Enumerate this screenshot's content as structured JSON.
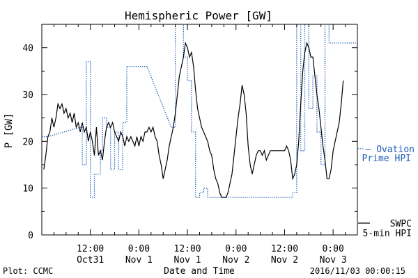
{
  "chart_data": {
    "type": "line",
    "title": "Hemispheric Power [GW]",
    "xlabel": "Date and Time",
    "ylabel": "P [GW]",
    "ylim": [
      0,
      45
    ],
    "xlim": [
      0,
      78
    ],
    "x_unit": "hours from 2016-10-31 00:00",
    "y_ticks": [
      0,
      10,
      20,
      30,
      40
    ],
    "x_ticks": [
      {
        "x": 12,
        "time": "12:00",
        "date": "Oct31"
      },
      {
        "x": 24,
        "time": "0:00",
        "date": "Nov 1"
      },
      {
        "x": 36,
        "time": "12:00",
        "date": "Nov 1"
      },
      {
        "x": 48,
        "time": "0:00",
        "date": "Nov 2"
      },
      {
        "x": 60,
        "time": "12:00",
        "date": "Nov 2"
      },
      {
        "x": 72,
        "time": "0:00",
        "date": "Nov 3"
      }
    ],
    "grid": false,
    "footer_left": "Plot: CCMC",
    "footer_right": "2016/11/03 00:00:15",
    "series": [
      {
        "name": "Ovation Prime HPI",
        "legend": [
          "— Ovation",
          "Prime HPI"
        ],
        "color": "#1f5fb8",
        "style": "dotted",
        "points": [
          [
            0,
            21
          ],
          [
            1.5,
            21
          ],
          [
            9.5,
            23
          ],
          [
            10,
            23
          ],
          [
            10,
            15
          ],
          [
            11,
            15
          ],
          [
            11,
            37
          ],
          [
            12,
            37
          ],
          [
            12,
            8
          ],
          [
            13,
            8
          ],
          [
            13,
            13
          ],
          [
            14.5,
            13
          ],
          [
            14.5,
            18
          ],
          [
            15,
            18
          ],
          [
            15,
            25
          ],
          [
            16,
            25
          ],
          [
            16,
            23
          ],
          [
            17,
            23
          ],
          [
            17,
            14
          ],
          [
            18,
            14
          ],
          [
            18,
            22
          ],
          [
            19,
            22
          ],
          [
            19,
            14
          ],
          [
            20,
            14
          ],
          [
            20,
            24
          ],
          [
            21,
            24
          ],
          [
            21,
            36
          ],
          [
            26,
            36
          ],
          [
            32,
            23
          ],
          [
            33,
            23
          ],
          [
            33,
            47
          ],
          [
            35,
            47
          ],
          [
            35,
            38
          ],
          [
            36,
            38
          ],
          [
            36,
            33
          ],
          [
            37,
            33
          ],
          [
            37,
            22
          ],
          [
            38,
            22
          ],
          [
            38,
            8
          ],
          [
            39,
            8
          ],
          [
            39,
            9
          ],
          [
            40,
            9
          ],
          [
            40,
            10
          ],
          [
            41,
            10
          ],
          [
            41,
            8
          ],
          [
            62,
            8
          ],
          [
            62,
            9
          ],
          [
            63,
            9
          ],
          [
            63,
            47
          ],
          [
            64,
            47
          ],
          [
            64,
            18
          ],
          [
            65,
            18
          ],
          [
            65,
            47
          ],
          [
            66,
            47
          ],
          [
            66,
            27
          ],
          [
            67,
            27
          ],
          [
            67,
            34
          ],
          [
            68,
            34
          ],
          [
            68,
            22
          ],
          [
            69,
            22
          ],
          [
            69,
            15
          ],
          [
            70,
            15
          ],
          [
            70,
            47
          ],
          [
            71,
            47
          ],
          [
            71,
            41
          ],
          [
            78,
            41
          ]
        ]
      },
      {
        "name": "SWPC 5-min HPI",
        "legend": [
          "SWPC",
          "5-min HPI"
        ],
        "color": "#000000",
        "style": "solid",
        "points": [
          [
            0.5,
            14
          ],
          [
            1,
            17
          ],
          [
            1.5,
            21
          ],
          [
            2,
            22
          ],
          [
            2.5,
            25
          ],
          [
            3,
            23
          ],
          [
            3.5,
            25
          ],
          [
            4,
            28
          ],
          [
            4.5,
            27
          ],
          [
            5,
            28
          ],
          [
            5.5,
            26
          ],
          [
            6,
            27
          ],
          [
            6.5,
            25
          ],
          [
            7,
            26
          ],
          [
            7.5,
            24
          ],
          [
            8,
            26
          ],
          [
            8.5,
            23
          ],
          [
            9,
            24
          ],
          [
            9.5,
            22
          ],
          [
            10,
            24
          ],
          [
            10.5,
            22
          ],
          [
            11,
            23
          ],
          [
            11.5,
            20
          ],
          [
            12,
            22
          ],
          [
            12.5,
            20
          ],
          [
            13,
            17
          ],
          [
            13.5,
            23
          ],
          [
            14,
            17
          ],
          [
            14.5,
            18
          ],
          [
            15,
            16
          ],
          [
            15.5,
            20
          ],
          [
            16,
            23
          ],
          [
            16.5,
            24
          ],
          [
            17,
            23
          ],
          [
            17.5,
            24
          ],
          [
            18,
            22
          ],
          [
            18.5,
            21
          ],
          [
            19,
            20
          ],
          [
            19.5,
            22
          ],
          [
            20,
            21
          ],
          [
            20.5,
            19
          ],
          [
            21,
            21
          ],
          [
            21.5,
            20
          ],
          [
            22,
            21
          ],
          [
            22.5,
            20
          ],
          [
            23,
            19
          ],
          [
            23.5,
            21
          ],
          [
            24,
            19
          ],
          [
            24.5,
            21
          ],
          [
            25,
            20
          ],
          [
            25.5,
            22
          ],
          [
            26,
            22
          ],
          [
            26.5,
            23
          ],
          [
            27,
            22
          ],
          [
            27.5,
            23
          ],
          [
            28,
            21
          ],
          [
            28.5,
            20
          ],
          [
            29,
            17
          ],
          [
            29.5,
            15
          ],
          [
            30,
            12
          ],
          [
            30.5,
            14
          ],
          [
            31,
            16
          ],
          [
            31.5,
            19
          ],
          [
            32,
            21
          ],
          [
            32.5,
            23
          ],
          [
            33,
            26
          ],
          [
            33.5,
            30
          ],
          [
            34,
            34
          ],
          [
            34.5,
            36
          ],
          [
            35,
            38
          ],
          [
            35.5,
            41
          ],
          [
            36,
            40
          ],
          [
            36.5,
            38
          ],
          [
            37,
            39
          ],
          [
            37.5,
            36
          ],
          [
            38,
            31
          ],
          [
            38.5,
            27
          ],
          [
            39,
            25
          ],
          [
            39.5,
            23
          ],
          [
            40,
            22
          ],
          [
            40.5,
            21
          ],
          [
            41,
            20
          ],
          [
            41.5,
            18
          ],
          [
            42,
            17
          ],
          [
            42.5,
            14
          ],
          [
            43,
            12
          ],
          [
            43.5,
            11
          ],
          [
            44,
            9
          ],
          [
            44.5,
            8
          ],
          [
            45,
            8
          ],
          [
            45.5,
            8
          ],
          [
            46,
            9
          ],
          [
            46.5,
            11
          ],
          [
            47,
            13
          ],
          [
            47.5,
            17
          ],
          [
            48,
            21
          ],
          [
            48.5,
            25
          ],
          [
            49,
            28
          ],
          [
            49.5,
            32
          ],
          [
            50,
            30
          ],
          [
            50.5,
            26
          ],
          [
            51,
            19
          ],
          [
            51.5,
            15
          ],
          [
            52,
            13
          ],
          [
            52.5,
            15
          ],
          [
            53,
            17
          ],
          [
            53.5,
            18
          ],
          [
            54,
            18
          ],
          [
            54.5,
            17
          ],
          [
            55,
            18
          ],
          [
            55.5,
            16
          ],
          [
            56,
            17
          ],
          [
            56.5,
            18
          ],
          [
            57,
            18
          ],
          [
            60,
            18
          ],
          [
            60.5,
            19
          ],
          [
            61,
            18
          ],
          [
            61.5,
            16
          ],
          [
            62,
            12
          ],
          [
            62.5,
            13
          ],
          [
            63,
            15
          ],
          [
            63.5,
            20
          ],
          [
            64,
            28
          ],
          [
            64.5,
            35
          ],
          [
            65,
            39
          ],
          [
            65.5,
            41
          ],
          [
            66,
            40
          ],
          [
            66.5,
            38
          ],
          [
            67,
            38
          ],
          [
            67.5,
            34
          ],
          [
            68,
            30
          ],
          [
            68.5,
            27
          ],
          [
            69,
            23
          ],
          [
            69.5,
            19
          ],
          [
            70,
            16
          ],
          [
            70.5,
            12
          ],
          [
            71,
            12
          ],
          [
            71.5,
            14
          ],
          [
            72,
            18
          ],
          [
            72.5,
            20
          ],
          [
            73,
            22
          ],
          [
            73.5,
            24
          ],
          [
            74,
            28
          ],
          [
            74.5,
            33
          ]
        ]
      }
    ]
  }
}
